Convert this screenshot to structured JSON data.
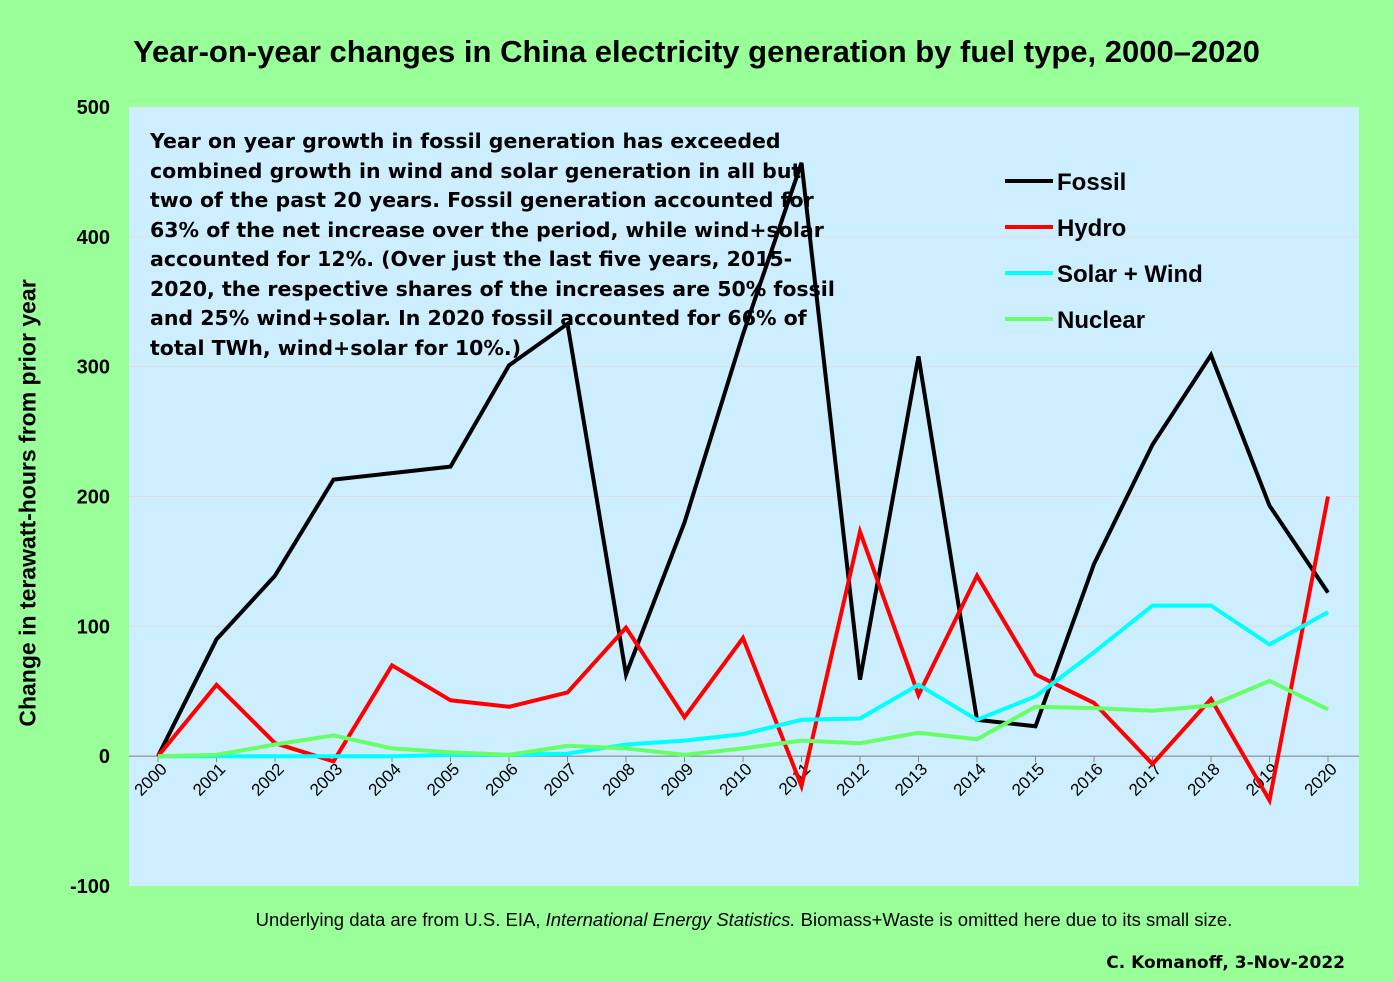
{
  "chart_data": {
    "type": "line",
    "title": "Year-on-year changes in China electricity generation by fuel type, 2000–2020",
    "ylabel": "Change in terawatt-hours from prior year",
    "xlabel": "",
    "ylim": [
      -100,
      500
    ],
    "yticks": [
      "-100",
      "0",
      "100",
      "200",
      "300",
      "400",
      "500"
    ],
    "categories": [
      "2000",
      "2001",
      "2002",
      "2003",
      "2004",
      "2005",
      "2006",
      "2007",
      "2008",
      "2009",
      "2010",
      "2011",
      "2012",
      "2013",
      "2014",
      "2015",
      "2016",
      "2017",
      "2018",
      "2019",
      "2020"
    ],
    "grid": "horizontal",
    "legend_position": "top-right",
    "series": [
      {
        "name": "Fossil",
        "color": "#000000",
        "values": [
          0,
          90,
          139,
          213,
          218,
          223,
          301,
          333,
          63,
          180,
          325,
          457,
          59,
          308,
          28,
          23,
          148,
          240,
          309,
          193,
          126
        ]
      },
      {
        "name": "Hydro",
        "color": "#ff0000",
        "values": [
          0,
          55,
          10,
          -4,
          70,
          43,
          38,
          49,
          99,
          30,
          91,
          -23,
          173,
          47,
          139,
          63,
          41,
          -6,
          44,
          -34,
          200
        ]
      },
      {
        "name": "Solar + Wind",
        "color": "#00ffff",
        "values": [
          0,
          0,
          0,
          0,
          0,
          1,
          1,
          2,
          9,
          12,
          17,
          28,
          29,
          55,
          28,
          46,
          80,
          116,
          116,
          86,
          111
        ]
      },
      {
        "name": "Nuclear",
        "color": "#66ff66",
        "values": [
          0,
          1,
          9,
          16,
          6,
          3,
          1,
          8,
          6,
          1,
          6,
          12,
          10,
          18,
          13,
          38,
          37,
          35,
          39,
          58,
          36
        ]
      }
    ],
    "annotation": [
      "Year on year growth in fossil generation has exceeded",
      "combined growth in wind and solar generation in all but",
      "two of the past 20 years. Fossil generation accounted for",
      "63% of the net increase over the period, while wind+solar",
      "accounted for 12%. (Over just the last five years, 2015-",
      "2020, the respective shares of the increases are 50% fossil",
      "and 25% wind+solar. In 2020 fossil accounted for 66% of",
      "total TWh, wind+solar for 10%.)"
    ]
  },
  "footer": {
    "source_prefix": "Underlying data are from U.S. EIA, ",
    "source_title": "International Energy Statistics.",
    "source_suffix": " Biomass+Waste is omitted here due to its small size.",
    "credit": "C. Komanoff, 3-Nov-2022"
  }
}
